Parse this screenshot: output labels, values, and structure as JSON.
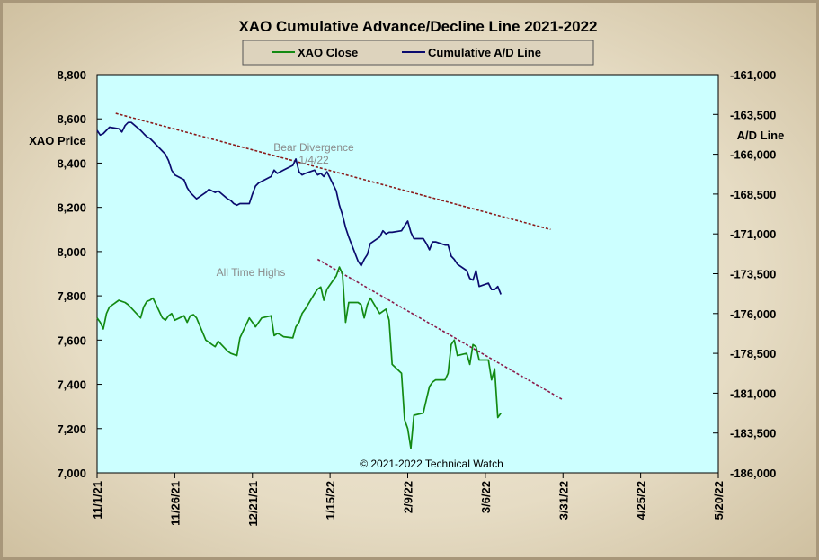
{
  "chart_data": {
    "type": "line",
    "title": "XAO Cumulative Advance/Decline Line 2021-2022",
    "ylabel_left": "XAO Price",
    "ylabel_right": "A/D Line",
    "ylim_left": [
      7000,
      8800
    ],
    "ylim_right": [
      -186000,
      -161000
    ],
    "yticks_left": [
      "8,800",
      "8,600",
      "8,400",
      "8,200",
      "8,000",
      "7,800",
      "7,600",
      "7,400",
      "7,200",
      "7,000"
    ],
    "yticks_right": [
      "-161,000",
      "-163,500",
      "-166,000",
      "-168,500",
      "-171,000",
      "-173,500",
      "-176,000",
      "-178,500",
      "-181,000",
      "-183,500",
      "-186,000"
    ],
    "xlim": [
      "2021-11-01",
      "2022-05-20"
    ],
    "xticks": [
      "11/1/21",
      "11/26/21",
      "12/21/21",
      "1/15/22",
      "2/9/22",
      "3/6/22",
      "3/31/22",
      "4/25/22",
      "5/20/22"
    ],
    "legend": [
      {
        "name": "XAO Close",
        "color": "#138a13"
      },
      {
        "name": "Cumulative A/D Line",
        "color": "#0b0b6e"
      }
    ],
    "grid": false,
    "background": "#ccffff",
    "series": [
      {
        "name": "XAO Close",
        "axis": "left",
        "color": "#138a13",
        "points": [
          [
            "2021-11-01",
            7700
          ],
          [
            "2021-11-02",
            7680
          ],
          [
            "2021-11-03",
            7650
          ],
          [
            "2021-11-04",
            7720
          ],
          [
            "2021-11-05",
            7750
          ],
          [
            "2021-11-08",
            7780
          ],
          [
            "2021-11-09",
            7775
          ],
          [
            "2021-11-10",
            7770
          ],
          [
            "2021-11-11",
            7760
          ],
          [
            "2021-11-12",
            7745
          ],
          [
            "2021-11-15",
            7700
          ],
          [
            "2021-11-16",
            7750
          ],
          [
            "2021-11-17",
            7775
          ],
          [
            "2021-11-18",
            7780
          ],
          [
            "2021-11-19",
            7790
          ],
          [
            "2021-11-22",
            7700
          ],
          [
            "2021-11-23",
            7690
          ],
          [
            "2021-11-24",
            7710
          ],
          [
            "2021-11-25",
            7720
          ],
          [
            "2021-11-26",
            7690
          ],
          [
            "2021-11-29",
            7710
          ],
          [
            "2021-11-30",
            7680
          ],
          [
            "2021-12-01",
            7710
          ],
          [
            "2021-12-02",
            7715
          ],
          [
            "2021-12-03",
            7700
          ],
          [
            "2021-12-06",
            7600
          ],
          [
            "2021-12-07",
            7590
          ],
          [
            "2021-12-08",
            7580
          ],
          [
            "2021-12-09",
            7570
          ],
          [
            "2021-12-10",
            7595
          ],
          [
            "2021-12-13",
            7550
          ],
          [
            "2021-12-14",
            7540
          ],
          [
            "2021-12-15",
            7535
          ],
          [
            "2021-12-16",
            7530
          ],
          [
            "2021-12-17",
            7610
          ],
          [
            "2021-12-20",
            7700
          ],
          [
            "2021-12-21",
            7680
          ],
          [
            "2021-12-22",
            7660
          ],
          [
            "2021-12-23",
            7680
          ],
          [
            "2021-12-24",
            7700
          ],
          [
            "2021-12-27",
            7710
          ],
          [
            "2021-12-28",
            7620
          ],
          [
            "2021-12-29",
            7630
          ],
          [
            "2021-12-30",
            7625
          ],
          [
            "2021-12-31",
            7615
          ],
          [
            "2022-01-03",
            7610
          ],
          [
            "2022-01-04",
            7660
          ],
          [
            "2022-01-05",
            7680
          ],
          [
            "2022-01-06",
            7720
          ],
          [
            "2022-01-07",
            7740
          ],
          [
            "2022-01-10",
            7810
          ],
          [
            "2022-01-11",
            7830
          ],
          [
            "2022-01-12",
            7840
          ],
          [
            "2022-01-13",
            7780
          ],
          [
            "2022-01-14",
            7830
          ],
          [
            "2022-01-17",
            7890
          ],
          [
            "2022-01-18",
            7930
          ],
          [
            "2022-01-19",
            7900
          ],
          [
            "2022-01-20",
            7680
          ],
          [
            "2022-01-21",
            7770
          ],
          [
            "2022-01-24",
            7770
          ],
          [
            "2022-01-25",
            7760
          ],
          [
            "2022-01-26",
            7700
          ],
          [
            "2022-01-27",
            7760
          ],
          [
            "2022-01-28",
            7790
          ],
          [
            "2022-01-31",
            7720
          ],
          [
            "2022-02-01",
            7730
          ],
          [
            "2022-02-02",
            7740
          ],
          [
            "2022-02-03",
            7690
          ],
          [
            "2022-02-04",
            7490
          ],
          [
            "2022-02-07",
            7450
          ],
          [
            "2022-02-08",
            7240
          ],
          [
            "2022-02-09",
            7200
          ],
          [
            "2022-02-10",
            7110
          ],
          [
            "2022-02-11",
            7260
          ],
          [
            "2022-02-14",
            7270
          ],
          [
            "2022-02-15",
            7330
          ],
          [
            "2022-02-16",
            7390
          ],
          [
            "2022-02-17",
            7410
          ],
          [
            "2022-02-18",
            7420
          ],
          [
            "2022-02-21",
            7420
          ],
          [
            "2022-02-22",
            7450
          ],
          [
            "2022-02-23",
            7580
          ],
          [
            "2022-02-24",
            7600
          ],
          [
            "2022-02-25",
            7530
          ],
          [
            "2022-02-28",
            7540
          ],
          [
            "2022-03-01",
            7490
          ],
          [
            "2022-03-02",
            7580
          ],
          [
            "2022-03-03",
            7570
          ],
          [
            "2022-03-04",
            7510
          ],
          [
            "2022-03-07",
            7510
          ],
          [
            "2022-03-08",
            7420
          ],
          [
            "2022-03-09",
            7470
          ],
          [
            "2022-03-10",
            7250
          ],
          [
            "2022-03-11",
            7270
          ]
        ]
      },
      {
        "name": "Cumulative A/D Line",
        "axis": "right",
        "color": "#0b0b6e",
        "points": [
          [
            "2021-11-01",
            -164500
          ],
          [
            "2021-11-02",
            -164800
          ],
          [
            "2021-11-03",
            -164700
          ],
          [
            "2021-11-04",
            -164500
          ],
          [
            "2021-11-05",
            -164300
          ],
          [
            "2021-11-08",
            -164400
          ],
          [
            "2021-11-09",
            -164600
          ],
          [
            "2021-11-10",
            -164200
          ],
          [
            "2021-11-11",
            -164000
          ],
          [
            "2021-11-12",
            -164000
          ],
          [
            "2021-11-15",
            -164500
          ],
          [
            "2021-11-16",
            -164700
          ],
          [
            "2021-11-17",
            -164900
          ],
          [
            "2021-11-18",
            -165000
          ],
          [
            "2021-11-19",
            -165200
          ],
          [
            "2021-11-22",
            -165800
          ],
          [
            "2021-11-23",
            -166000
          ],
          [
            "2021-11-24",
            -166400
          ],
          [
            "2021-11-25",
            -167000
          ],
          [
            "2021-11-26",
            -167300
          ],
          [
            "2021-11-29",
            -167600
          ],
          [
            "2021-11-30",
            -168100
          ],
          [
            "2021-12-01",
            -168400
          ],
          [
            "2021-12-02",
            -168600
          ],
          [
            "2021-12-03",
            -168800
          ],
          [
            "2021-12-06",
            -168400
          ],
          [
            "2021-12-07",
            -168200
          ],
          [
            "2021-12-08",
            -168300
          ],
          [
            "2021-12-09",
            -168400
          ],
          [
            "2021-12-10",
            -168300
          ],
          [
            "2021-12-13",
            -168800
          ],
          [
            "2021-12-14",
            -168900
          ],
          [
            "2021-12-15",
            -169100
          ],
          [
            "2021-12-16",
            -169200
          ],
          [
            "2021-12-17",
            -169100
          ],
          [
            "2021-12-20",
            -169100
          ],
          [
            "2021-12-21",
            -168500
          ],
          [
            "2021-12-22",
            -168000
          ],
          [
            "2021-12-23",
            -167800
          ],
          [
            "2021-12-24",
            -167700
          ],
          [
            "2021-12-27",
            -167400
          ],
          [
            "2021-12-28",
            -167000
          ],
          [
            "2021-12-29",
            -167200
          ],
          [
            "2021-12-30",
            -167100
          ],
          [
            "2021-12-31",
            -167000
          ],
          [
            "2022-01-03",
            -166700
          ],
          [
            "2022-01-04",
            -166300
          ],
          [
            "2022-01-05",
            -167100
          ],
          [
            "2022-01-06",
            -167300
          ],
          [
            "2022-01-07",
            -167200
          ],
          [
            "2022-01-10",
            -167000
          ],
          [
            "2022-01-11",
            -167300
          ],
          [
            "2022-01-12",
            -167200
          ],
          [
            "2022-01-13",
            -167400
          ],
          [
            "2022-01-14",
            -167100
          ],
          [
            "2022-01-17",
            -168300
          ],
          [
            "2022-01-18",
            -169200
          ],
          [
            "2022-01-19",
            -169800
          ],
          [
            "2022-01-20",
            -170600
          ],
          [
            "2022-01-21",
            -171200
          ],
          [
            "2022-01-24",
            -172700
          ],
          [
            "2022-01-25",
            -173000
          ],
          [
            "2022-01-26",
            -172600
          ],
          [
            "2022-01-27",
            -172300
          ],
          [
            "2022-01-28",
            -171600
          ],
          [
            "2022-01-31",
            -171200
          ],
          [
            "2022-02-01",
            -170800
          ],
          [
            "2022-02-02",
            -171000
          ],
          [
            "2022-02-03",
            -170900
          ],
          [
            "2022-02-04",
            -170900
          ],
          [
            "2022-02-07",
            -170800
          ],
          [
            "2022-02-08",
            -170500
          ],
          [
            "2022-02-09",
            -170200
          ],
          [
            "2022-02-10",
            -170900
          ],
          [
            "2022-02-11",
            -171300
          ],
          [
            "2022-02-14",
            -171300
          ],
          [
            "2022-02-15",
            -171600
          ],
          [
            "2022-02-16",
            -172000
          ],
          [
            "2022-02-17",
            -171500
          ],
          [
            "2022-02-18",
            -171500
          ],
          [
            "2022-02-21",
            -171700
          ],
          [
            "2022-02-22",
            -171700
          ],
          [
            "2022-02-23",
            -172400
          ],
          [
            "2022-02-24",
            -172600
          ],
          [
            "2022-02-25",
            -172900
          ],
          [
            "2022-02-28",
            -173300
          ],
          [
            "2022-03-01",
            -173800
          ],
          [
            "2022-03-02",
            -173900
          ],
          [
            "2022-03-03",
            -173300
          ],
          [
            "2022-03-04",
            -174300
          ],
          [
            "2022-03-07",
            -174100
          ],
          [
            "2022-03-08",
            -174500
          ],
          [
            "2022-03-09",
            -174500
          ],
          [
            "2022-03-10",
            -174300
          ],
          [
            "2022-03-11",
            -174800
          ]
        ]
      }
    ],
    "trendlines": [
      {
        "axis": "left",
        "color": "#8b1a1a",
        "from": [
          "2021-11-07",
          8625
        ],
        "to": [
          "2022-03-27",
          8100
        ]
      },
      {
        "axis": "left",
        "color": "#8b1a4a",
        "from": [
          "2022-01-11",
          7965
        ],
        "to": [
          "2022-03-31",
          7330
        ]
      }
    ],
    "annotations": [
      {
        "lines": [
          "Bear Divergence",
          "1/4/22"
        ]
      },
      {
        "lines": [
          "All Time Highs"
        ]
      }
    ],
    "copyright": "© 2021-2022  Technical  Watch"
  }
}
